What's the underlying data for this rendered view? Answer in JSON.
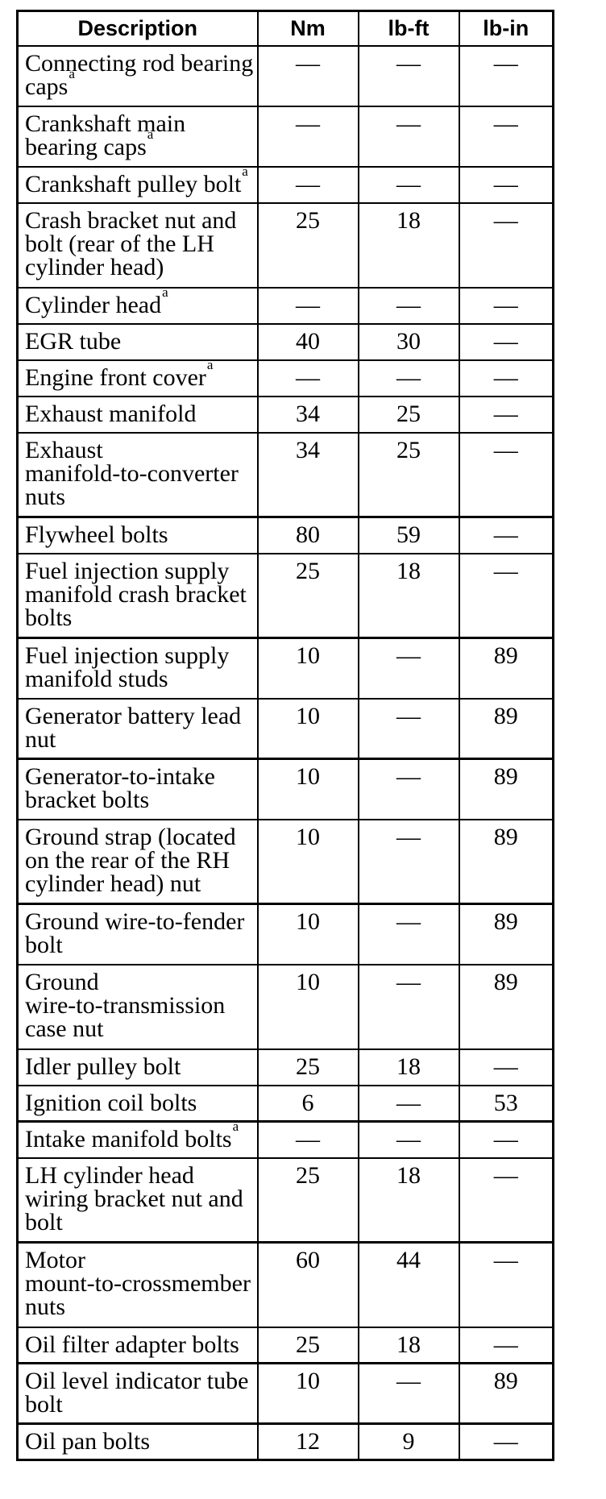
{
  "table": {
    "columns": [
      "Description",
      "Nm",
      "lb-ft",
      "lb-in"
    ],
    "rows": [
      {
        "lines": [
          "Connecting rod bearing",
          "caps"
        ],
        "sup": "a",
        "nm": "—",
        "lb_ft": "—",
        "lb_in": "—"
      },
      {
        "lines": [
          "Crankshaft main",
          "bearing caps"
        ],
        "sup": "a",
        "nm": "—",
        "lb_ft": "—",
        "lb_in": "—"
      },
      {
        "lines": [
          "Crankshaft pulley bolt"
        ],
        "sup": "a",
        "nm": "—",
        "lb_ft": "—",
        "lb_in": "—"
      },
      {
        "lines": [
          "Crash bracket nut and",
          "bolt (rear of the LH",
          "cylinder head)"
        ],
        "nm": "25",
        "lb_ft": "18",
        "lb_in": "—"
      },
      {
        "lines": [
          "Cylinder head"
        ],
        "sup": "a",
        "nm": "—",
        "lb_ft": "—",
        "lb_in": "—"
      },
      {
        "lines": [
          "EGR tube"
        ],
        "nm": "40",
        "lb_ft": "30",
        "lb_in": "—"
      },
      {
        "lines": [
          "Engine front cover"
        ],
        "sup": "a",
        "nm": "—",
        "lb_ft": "—",
        "lb_in": "—"
      },
      {
        "lines": [
          "Exhaust manifold"
        ],
        "nm": "34",
        "lb_ft": "25",
        "lb_in": "—"
      },
      {
        "lines": [
          "Exhaust",
          "manifold-to-converter",
          "nuts"
        ],
        "nm": "34",
        "lb_ft": "25",
        "lb_in": "—"
      },
      {
        "lines": [
          "Flywheel bolts"
        ],
        "nm": "80",
        "lb_ft": "59",
        "lb_in": "—"
      },
      {
        "lines": [
          "Fuel injection supply",
          "manifold crash bracket",
          "bolts"
        ],
        "nm": "25",
        "lb_ft": "18",
        "lb_in": "—"
      },
      {
        "lines": [
          "Fuel injection supply",
          "manifold studs"
        ],
        "nm": "10",
        "lb_ft": "—",
        "lb_in": "89"
      },
      {
        "lines": [
          "Generator battery lead",
          "nut"
        ],
        "nm": "10",
        "lb_ft": "—",
        "lb_in": "89"
      },
      {
        "lines": [
          "Generator-to-intake",
          "bracket bolts"
        ],
        "nm": "10",
        "lb_ft": "—",
        "lb_in": "89"
      },
      {
        "lines": [
          "Ground strap (located",
          "on the rear of the RH",
          "cylinder head) nut"
        ],
        "nm": "10",
        "lb_ft": "—",
        "lb_in": "89"
      },
      {
        "lines": [
          "Ground wire-to-fender",
          "bolt"
        ],
        "nm": "10",
        "lb_ft": "—",
        "lb_in": "89"
      },
      {
        "lines": [
          "Ground",
          "wire-to-transmission",
          "case nut"
        ],
        "nm": "10",
        "lb_ft": "—",
        "lb_in": "89"
      },
      {
        "lines": [
          "Idler pulley bolt"
        ],
        "nm": "25",
        "lb_ft": "18",
        "lb_in": "—"
      },
      {
        "lines": [
          "Ignition coil bolts"
        ],
        "nm": "6",
        "lb_ft": "—",
        "lb_in": "53"
      },
      {
        "lines": [
          "Intake manifold bolts"
        ],
        "sup": "a",
        "nm": "—",
        "lb_ft": "—",
        "lb_in": "—"
      },
      {
        "lines": [
          "LH cylinder head",
          "wiring bracket nut and",
          "bolt"
        ],
        "nm": "25",
        "lb_ft": "18",
        "lb_in": "—"
      },
      {
        "lines": [
          "Motor",
          "mount-to-crossmember",
          "nuts"
        ],
        "nm": "60",
        "lb_ft": "44",
        "lb_in": "—"
      },
      {
        "lines": [
          "Oil filter adapter bolts"
        ],
        "nm": "25",
        "lb_ft": "18",
        "lb_in": "—"
      },
      {
        "lines": [
          "Oil level indicator tube",
          "bolt"
        ],
        "nm": "10",
        "lb_ft": "—",
        "lb_in": "89"
      },
      {
        "lines": [
          "Oil pan bolts"
        ],
        "nm": "12",
        "lb_ft": "9",
        "lb_in": "—"
      }
    ]
  }
}
